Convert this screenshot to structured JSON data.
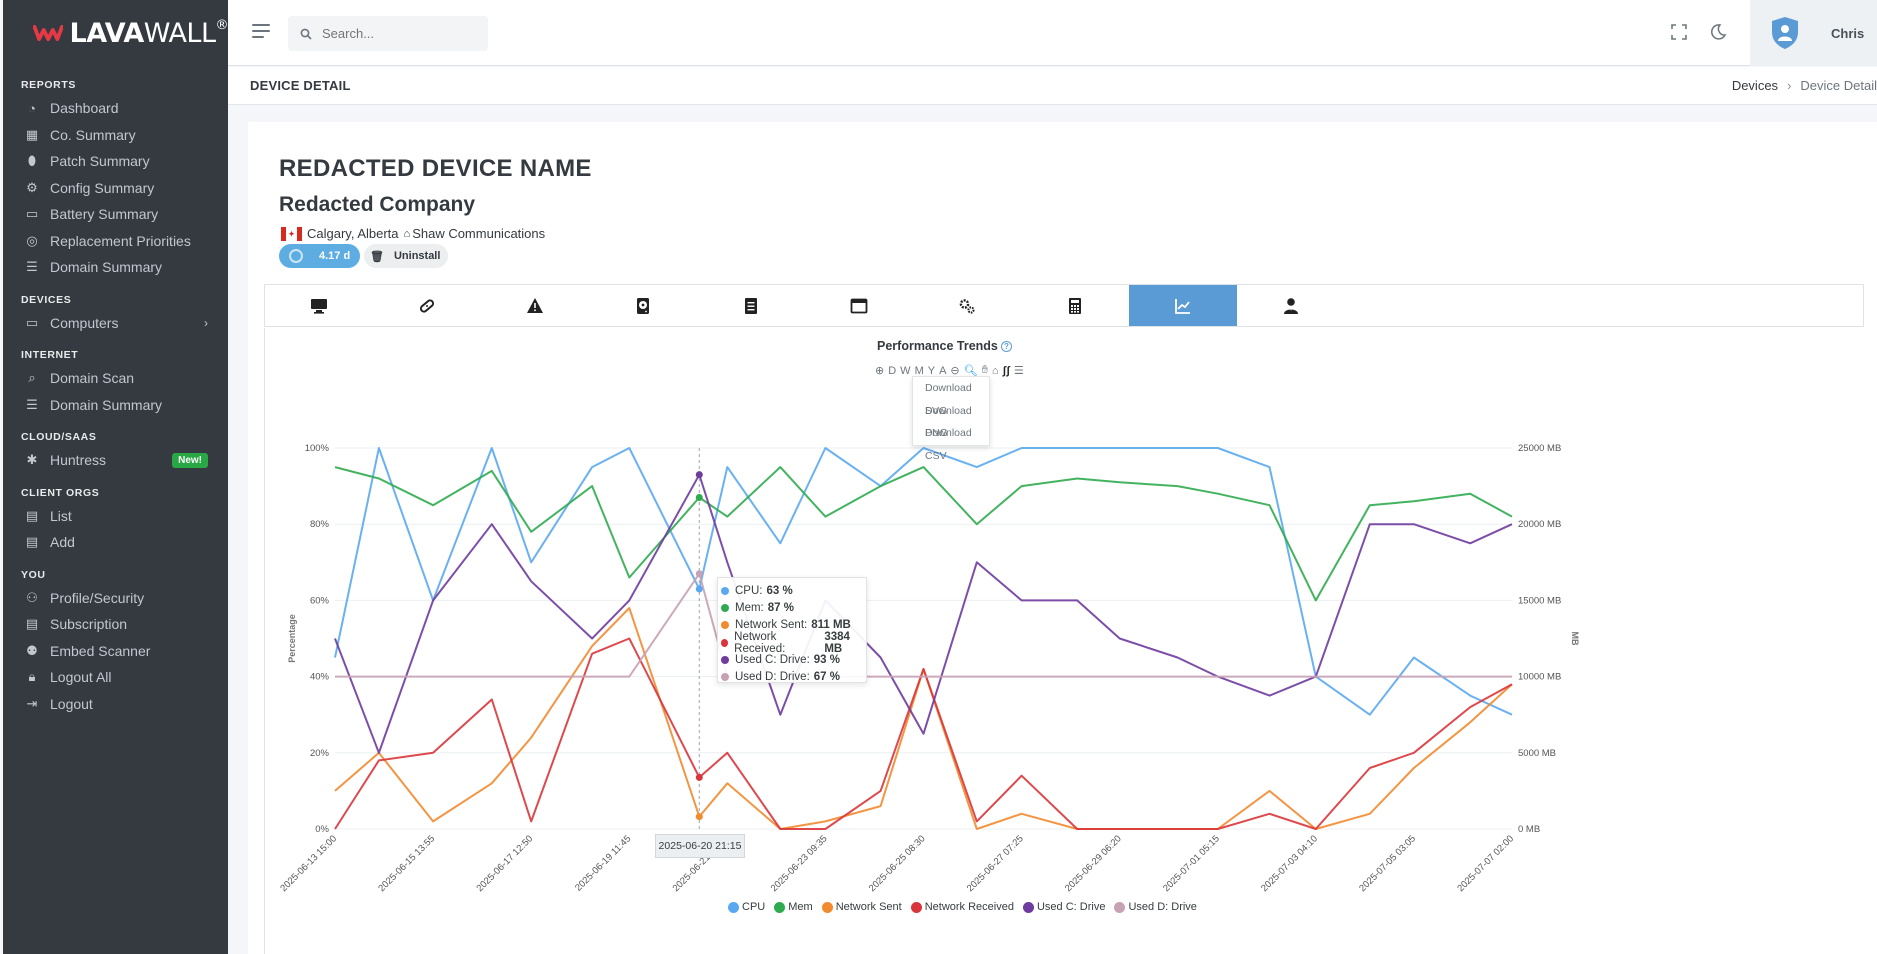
{
  "brand": {
    "name_bold": "LAVA",
    "name_light": "WALL",
    "reg": "®"
  },
  "sidebar": {
    "sections": [
      {
        "title": "REPORTS",
        "items": [
          {
            "label": "Dashboard",
            "icon": "dashboard-icon"
          },
          {
            "label": "Co. Summary",
            "icon": "building-icon"
          },
          {
            "label": "Patch Summary",
            "icon": "bandage-icon"
          },
          {
            "label": "Config Summary",
            "icon": "gear-icon"
          },
          {
            "label": "Battery Summary",
            "icon": "battery-icon"
          },
          {
            "label": "Replacement Priorities",
            "icon": "priority-icon"
          },
          {
            "label": "Domain Summary",
            "icon": "list-icon"
          }
        ]
      },
      {
        "title": "DEVICES",
        "items": [
          {
            "label": "Computers",
            "icon": "desktop-icon"
          }
        ]
      },
      {
        "title": "INTERNET",
        "items": [
          {
            "label": "Domain Scan",
            "icon": "magnifier-icon"
          },
          {
            "label": "Domain Summary",
            "icon": "list-icon"
          }
        ]
      },
      {
        "title": "CLOUD/SAAS",
        "items": [
          {
            "label": "Huntress",
            "icon": "huntress-icon",
            "badge": "New!"
          }
        ]
      },
      {
        "title": "CLIENT ORGS",
        "items": [
          {
            "label": "List",
            "icon": "org-list-icon"
          },
          {
            "label": "Add",
            "icon": "org-add-icon"
          }
        ]
      },
      {
        "title": "YOU",
        "items": [
          {
            "label": "Profile/Security",
            "icon": "user-gear-icon"
          },
          {
            "label": "Subscription",
            "icon": "receipt-icon"
          },
          {
            "label": "Embed Scanner",
            "icon": "embed-icon"
          },
          {
            "label": "Logout All",
            "icon": "lock-icon"
          },
          {
            "label": "Logout",
            "icon": "logout-icon"
          }
        ]
      }
    ]
  },
  "header": {
    "search_placeholder": "Search...",
    "user_name": "Chris"
  },
  "page": {
    "title": "DEVICE DETAIL",
    "breadcrumb": [
      "Devices",
      "Device Detail"
    ]
  },
  "device": {
    "name": "REDACTED DEVICE NAME",
    "company": "Redacted Company",
    "location": "Calgary, Alberta",
    "isp": "Shaw Communications",
    "uptime": "4.17 d",
    "uninstall_label": "Uninstall"
  },
  "tabs": [
    {
      "icon": "desktop-icon"
    },
    {
      "icon": "bandage-icon"
    },
    {
      "icon": "warning-icon"
    },
    {
      "icon": "hdd-icon"
    },
    {
      "icon": "document-icon"
    },
    {
      "icon": "window-icon"
    },
    {
      "icon": "cogs-icon"
    },
    {
      "icon": "calculator-icon"
    },
    {
      "icon": "chart-line-icon",
      "active": true
    },
    {
      "icon": "user-tie-icon"
    }
  ],
  "chart_toolbar": {
    "zoom_buttons": [
      "D",
      "W",
      "M",
      "Y",
      "A"
    ]
  },
  "export_menu": [
    "Download SVG",
    "Download PNG",
    "Download CSV"
  ],
  "tooltip": {
    "x": "2025-06-20 21:15",
    "rows": [
      {
        "name": "CPU:",
        "value": "63 %",
        "color": "#5aa9f0"
      },
      {
        "name": "Mem:",
        "value": "87 %",
        "color": "#2fab4f"
      },
      {
        "name": "Network Sent:",
        "value": "811 MB",
        "color": "#f28a2e"
      },
      {
        "name": "Network Received:",
        "value": "3384 MB",
        "color": "#d9353a"
      },
      {
        "name": "Used C: Drive:",
        "value": "93 %",
        "color": "#6e3b9e"
      },
      {
        "name": "Used D: Drive:",
        "value": "67 %",
        "color": "#c7a1b4"
      }
    ]
  },
  "chart_data": {
    "type": "line",
    "title": "Performance Trends",
    "ylabel": "Percentage",
    "ylabel_right": "MB",
    "ylim": [
      0,
      100
    ],
    "ylim_right": [
      0,
      25000
    ],
    "y_ticks": [
      "0%",
      "20%",
      "40%",
      "60%",
      "80%",
      "100%"
    ],
    "y_right_ticks": [
      "0 MB",
      "5000 MB",
      "10000 MB",
      "15000 MB",
      "20000 MB",
      "25000 MB"
    ],
    "x_ticks": [
      "2025-06-13 15:00",
      "2025-06-15 13:55",
      "2025-06-17 12:50",
      "2025-06-19 11:45",
      "2025-06-21 10:40",
      "2025-06-23 09:35",
      "2025-06-25 08:30",
      "2025-06-27 07:25",
      "2025-06-29 06:20",
      "2025-07-01 05:15",
      "2025-07-03 04:10",
      "2025-07-05 03:05",
      "2025-07-07 02:00"
    ],
    "legend_position": "bottom",
    "x": [
      "2025-06-13 15:00",
      "2025-06-14 12:00",
      "2025-06-15 13:55",
      "2025-06-16 18:00",
      "2025-06-17 12:50",
      "2025-06-18 18:00",
      "2025-06-19 11:45",
      "2025-06-20 21:15",
      "2025-06-21 10:40",
      "2025-06-22 12:00",
      "2025-06-23 09:35",
      "2025-06-24 12:00",
      "2025-06-25 08:30",
      "2025-06-26 10:00",
      "2025-06-27 07:25",
      "2025-06-28 10:00",
      "2025-06-29 06:20",
      "2025-06-30 10:00",
      "2025-07-01 05:15",
      "2025-07-02 06:00",
      "2025-07-03 04:10",
      "2025-07-04 06:00",
      "2025-07-05 03:05",
      "2025-07-06 06:00",
      "2025-07-07 02:00"
    ],
    "series": [
      {
        "name": "CPU",
        "axis": "left",
        "color": "#5aa9f0",
        "values": [
          45,
          100,
          60,
          100,
          70,
          95,
          100,
          63,
          95,
          75,
          100,
          90,
          100,
          95,
          100,
          100,
          100,
          100,
          100,
          95,
          40,
          30,
          45,
          35,
          30
        ]
      },
      {
        "name": "Mem",
        "axis": "left",
        "color": "#2fab4f",
        "values": [
          95,
          92,
          85,
          94,
          78,
          90,
          66,
          87,
          82,
          95,
          82,
          90,
          95,
          80,
          90,
          92,
          91,
          90,
          88,
          85,
          60,
          85,
          86,
          88,
          82
        ]
      },
      {
        "name": "Network Sent",
        "axis": "right",
        "color": "#f28a2e",
        "values": [
          2500,
          5000,
          500,
          3000,
          6000,
          12000,
          14500,
          811,
          3000,
          0,
          500,
          1500,
          10500,
          0,
          1000,
          0,
          0,
          0,
          0,
          2500,
          0,
          1000,
          4000,
          7000,
          9500
        ]
      },
      {
        "name": "Network Received",
        "axis": "right",
        "color": "#d9353a",
        "values": [
          0,
          4500,
          5000,
          8500,
          500,
          11500,
          12500,
          3384,
          5000,
          0,
          0,
          2500,
          10500,
          500,
          3500,
          0,
          0,
          0,
          0,
          1000,
          0,
          4000,
          5000,
          8000,
          9500
        ]
      },
      {
        "name": "Used C: Drive",
        "axis": "left",
        "color": "#6e3b9e",
        "values": [
          50,
          20,
          60,
          80,
          65,
          50,
          60,
          93,
          70,
          30,
          60,
          45,
          25,
          70,
          60,
          60,
          50,
          45,
          40,
          35,
          40,
          80,
          80,
          75,
          80
        ]
      },
      {
        "name": "Used D: Drive",
        "axis": "left",
        "color": "#c7a1b4",
        "values": [
          40,
          40,
          40,
          40,
          40,
          40,
          40,
          67,
          40,
          40,
          40,
          40,
          40,
          40,
          40,
          40,
          40,
          40,
          40,
          40,
          40,
          40,
          40,
          40,
          40
        ]
      }
    ]
  }
}
